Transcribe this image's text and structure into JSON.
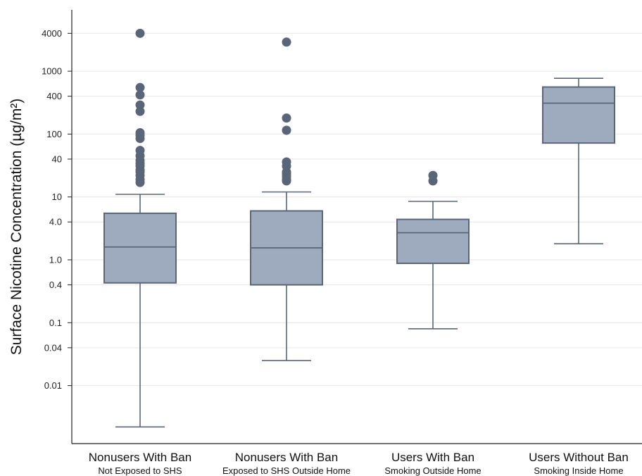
{
  "chart_data": {
    "type": "box",
    "ylabel": "Surface Nicotine Concentration (µg/m²)",
    "yscale": "log",
    "ylim": [
      0.0012,
      8000
    ],
    "yticks": [
      0.01,
      0.04,
      0.1,
      0.4,
      1.0,
      4.0,
      10,
      40,
      100,
      400,
      1000,
      4000
    ],
    "ytick_labels": [
      "0.01",
      "0.04",
      "0.1",
      "0.4",
      "1.0",
      "4.0",
      "10",
      "40",
      "100",
      "400",
      "1000",
      "4000"
    ],
    "grid": "horizontal",
    "box_color": "#9eabbf",
    "line_color": "#5a6578",
    "categories": [
      {
        "label": "Nonusers With Ban",
        "sublabel": "Not Exposed to SHS"
      },
      {
        "label": "Nonusers With Ban",
        "sublabel": "Exposed to SHS Outside Home"
      },
      {
        "label": "Users With Ban",
        "sublabel": "Smoking Outside Home"
      },
      {
        "label": "Users Without Ban",
        "sublabel": "Smoking Inside Home"
      }
    ],
    "boxes": [
      {
        "whisker_low": 0.0022,
        "q1": 0.43,
        "median": 1.6,
        "q3": 5.5,
        "whisker_high": 11,
        "outliers": [
          4000,
          550,
          420,
          290,
          230,
          105,
          95,
          85,
          55,
          45,
          38,
          34,
          31,
          27,
          25,
          22,
          19,
          17
        ]
      },
      {
        "whisker_low": 0.025,
        "q1": 0.4,
        "median": 1.55,
        "q3": 6.0,
        "whisker_high": 12,
        "outliers": [
          2900,
          180,
          115,
          36,
          31,
          25,
          23,
          21,
          19,
          18
        ]
      },
      {
        "whisker_low": 0.08,
        "q1": 0.88,
        "median": 2.7,
        "q3": 4.4,
        "whisker_high": 8.5,
        "outliers": [
          22,
          18
        ]
      },
      {
        "whisker_low": 1.8,
        "q1": 72,
        "median": 310,
        "q3": 560,
        "whisker_high": 770,
        "outliers": []
      }
    ]
  }
}
